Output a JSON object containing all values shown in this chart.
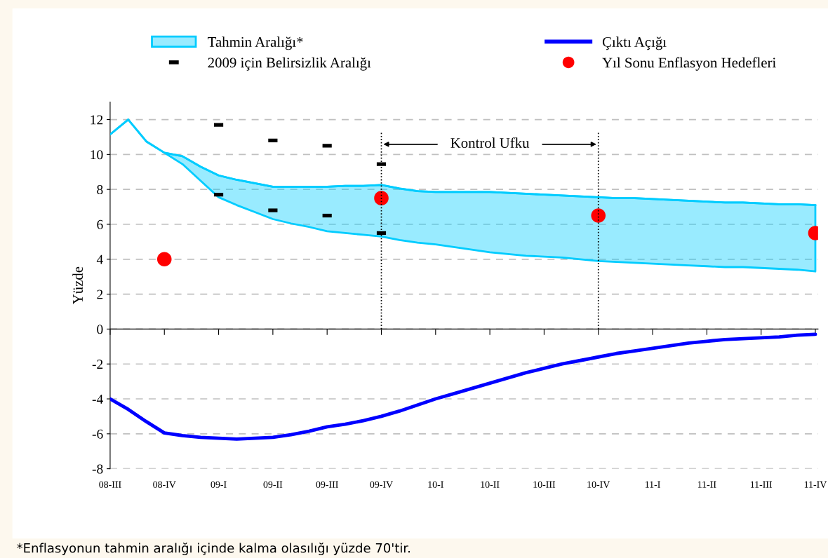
{
  "chart_data": {
    "type": "line",
    "ylabel": "Yüzde",
    "annotations": [
      "Kontrol Ufku",
      "*Enflasyonun tahmin aralığı içinde kalma olasılığı yüzde 70'tir."
    ],
    "categories": [
      "08-III",
      null,
      null,
      "08-IV",
      null,
      null,
      "09-I",
      null,
      null,
      "09-II",
      null,
      null,
      "09-III",
      null,
      null,
      "09-IV",
      null,
      null,
      "10-I",
      null,
      null,
      "10-II",
      null,
      null,
      "10-III",
      null,
      null,
      "10-IV",
      null,
      null,
      "11-I",
      null,
      null,
      "11-II",
      null,
      null,
      "11-III",
      null,
      null,
      "11-IV"
    ],
    "ylim": [
      -8,
      13
    ],
    "yticks": [
      -8,
      -6,
      -4,
      -2,
      0,
      2,
      4,
      6,
      8,
      10,
      12
    ],
    "grid": "y",
    "legend": "top",
    "ref_lines": [
      {
        "axis": "x",
        "value": "09-IV",
        "label": null,
        "color": "#000000",
        "line_style": "dotted"
      },
      {
        "axis": "x",
        "value": "10-IV",
        "label": null,
        "color": "#000000",
        "line_style": "dotted"
      }
    ],
    "series": [
      {
        "name": "Tahmin Aralığı*",
        "type": "line",
        "color": "#00ccff",
        "upper": [
          11.15,
          12.0,
          10.75,
          10.1,
          9.9,
          9.3,
          8.8,
          8.55,
          8.35,
          8.15,
          8.15,
          8.15,
          8.15,
          8.2,
          8.2,
          8.25,
          8.05,
          7.9,
          7.85,
          7.85,
          7.85,
          7.85,
          7.8,
          7.75,
          7.7,
          7.65,
          7.6,
          7.55,
          7.5,
          7.5,
          7.45,
          7.4,
          7.35,
          7.3,
          7.25,
          7.25,
          7.2,
          7.15,
          7.15,
          7.1
        ],
        "values": [
          11.15,
          12.0,
          10.75,
          10.1,
          9.9,
          9.3,
          8.8,
          8.55,
          8.35,
          8.15,
          8.15,
          8.15,
          8.15,
          8.2,
          8.2,
          8.25,
          8.05,
          7.9,
          7.85,
          7.85,
          7.85,
          7.85,
          7.8,
          7.75,
          7.7,
          7.65,
          7.6,
          7.55,
          7.5,
          7.5,
          7.45,
          7.4,
          7.35,
          7.3,
          7.25,
          7.25,
          7.2,
          7.15,
          7.15,
          7.1
        ],
        "lower": [
          11.15,
          12.0,
          10.75,
          10.1,
          9.45,
          8.5,
          7.55,
          7.1,
          6.7,
          6.3,
          6.05,
          5.85,
          5.6,
          5.5,
          5.4,
          5.3,
          5.1,
          4.95,
          4.85,
          4.7,
          4.55,
          4.4,
          4.3,
          4.2,
          4.15,
          4.1,
          4.0,
          3.9,
          3.85,
          3.8,
          3.75,
          3.7,
          3.65,
          3.6,
          3.55,
          3.55,
          3.5,
          3.45,
          3.4,
          3.3
        ]
      },
      {
        "name": "Çıktı Açığı",
        "color": "#0000ff",
        "values": [
          -4.0,
          -4.6,
          -5.3,
          -5.95,
          -6.1,
          -6.2,
          -6.25,
          -6.3,
          -6.25,
          -6.2,
          -6.05,
          -5.85,
          -5.6,
          -5.45,
          -5.25,
          -5.0,
          -4.7,
          -4.35,
          -4.0,
          -3.7,
          -3.4,
          -3.1,
          -2.8,
          -2.5,
          -2.25,
          -2.0,
          -1.8,
          -1.6,
          -1.4,
          -1.25,
          -1.1,
          -0.95,
          -0.8,
          -0.7,
          -0.6,
          -0.55,
          -0.5,
          -0.45,
          -0.35,
          -0.3
        ]
      },
      {
        "name": "2009 için Belirsizlik Aralığı",
        "type": "scatter",
        "marker": "square",
        "color": "#000000",
        "values": [
          null,
          null,
          null,
          null,
          null,
          null,
          11.7,
          null,
          null,
          10.8,
          null,
          null,
          10.5,
          null,
          null,
          9.45,
          null,
          null,
          null,
          null,
          null,
          null,
          null,
          null,
          null,
          null,
          null,
          null,
          null,
          null,
          null,
          null,
          null,
          null,
          null,
          null,
          null,
          null,
          null,
          null
        ]
      },
      {
        "type": "scatter",
        "marker": "square",
        "color": "#000000",
        "values": [
          null,
          null,
          null,
          null,
          null,
          null,
          7.7,
          null,
          null,
          6.8,
          null,
          null,
          6.5,
          null,
          null,
          5.5,
          null,
          null,
          null,
          null,
          null,
          null,
          null,
          null,
          null,
          null,
          null,
          null,
          null,
          null,
          null,
          null,
          null,
          null,
          null,
          null,
          null,
          null,
          null,
          null
        ]
      },
      {
        "name": "Yıl Sonu Enflasyon Hedefleri",
        "type": "scatter",
        "marker": "circle",
        "color": "#ff0000",
        "values": [
          null,
          null,
          null,
          4.0,
          null,
          null,
          null,
          null,
          null,
          null,
          null,
          null,
          null,
          null,
          null,
          7.5,
          null,
          null,
          null,
          null,
          null,
          null,
          null,
          null,
          null,
          null,
          null,
          6.5,
          null,
          null,
          null,
          null,
          null,
          null,
          null,
          null,
          null,
          null,
          null,
          5.5
        ]
      }
    ]
  }
}
